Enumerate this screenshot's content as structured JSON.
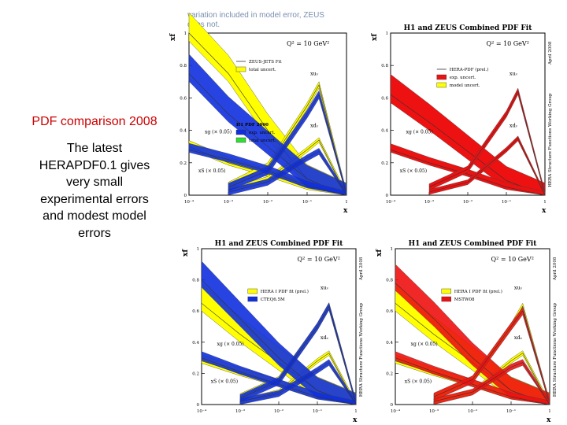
{
  "caption": {
    "line1": "variation included in model error, ZEUS",
    "line2": "does not."
  },
  "side": {
    "title": "PDF comparison 2008",
    "text": [
      "The latest",
      "HERAPDF0.1 gives",
      "very small",
      "experimental errors",
      "and modest model",
      "errors"
    ]
  },
  "colors": {
    "yellow": "#ffff00",
    "blue": "#1030e0",
    "green": "#33dd33",
    "red": "#ee1111",
    "title_red": "#cc0000"
  },
  "chart_data": [
    {
      "type": "line",
      "title": "",
      "scale_label": "Q² = 10 GeV²",
      "xlabel": "x",
      "ylabel": "xf",
      "xscale": "log",
      "xlim": [
        0.0001,
        1
      ],
      "ylim": [
        0,
        1
      ],
      "xticks": [
        "10⁻⁴",
        "10⁻³",
        "10⁻²",
        "10⁻¹",
        "1"
      ],
      "yticks": [
        "0",
        "0.2",
        "0.4",
        "0.6",
        "0.8",
        "1"
      ],
      "legend": [
        "ZEUS-JETS Fit",
        "total uncert.",
        "H1 PDF 2000",
        "exp. uncert.",
        "total uncert."
      ],
      "labels": {
        "uv": "xuᵥ",
        "dv": "xdᵥ",
        "g": "xg (× 0.05)",
        "s": "xS (× 0.05)"
      },
      "side_note": "",
      "series": [
        {
          "name": "ZEUS-JETS Fit",
          "band": "yellow",
          "curves": {
            "g": [
              [
                0.0001,
                1.0
              ],
              [
                0.001,
                0.75
              ],
              [
                0.01,
                0.4
              ],
              [
                0.1,
                0.1
              ],
              [
                1,
                0
              ]
            ],
            "s": [
              [
                0.0001,
                0.3
              ],
              [
                0.001,
                0.2
              ],
              [
                0.01,
                0.13
              ],
              [
                0.1,
                0.05
              ],
              [
                1,
                0
              ]
            ],
            "uv": [
              [
                0.001,
                0.06
              ],
              [
                0.01,
                0.18
              ],
              [
                0.1,
                0.55
              ],
              [
                0.2,
                0.68
              ],
              [
                1,
                0
              ]
            ],
            "dv": [
              [
                0.001,
                0.03
              ],
              [
                0.01,
                0.1
              ],
              [
                0.1,
                0.28
              ],
              [
                0.2,
                0.34
              ],
              [
                1,
                0
              ]
            ]
          }
        },
        {
          "name": "H1 PDF 2000",
          "band": "blue",
          "curves": {
            "g": [
              [
                0.0001,
                0.75
              ],
              [
                0.001,
                0.5
              ],
              [
                0.01,
                0.3
              ],
              [
                0.1,
                0.1
              ],
              [
                1,
                0
              ]
            ],
            "s": [
              [
                0.0001,
                0.28
              ],
              [
                0.001,
                0.22
              ],
              [
                0.01,
                0.15
              ],
              [
                0.1,
                0.06
              ],
              [
                1,
                0
              ]
            ],
            "uv": [
              [
                0.001,
                0.05
              ],
              [
                0.01,
                0.15
              ],
              [
                0.1,
                0.5
              ],
              [
                0.2,
                0.62
              ],
              [
                1,
                0
              ]
            ],
            "dv": [
              [
                0.001,
                0.02
              ],
              [
                0.01,
                0.08
              ],
              [
                0.1,
                0.23
              ],
              [
                0.2,
                0.27
              ],
              [
                1,
                0
              ]
            ]
          }
        }
      ]
    },
    {
      "type": "line",
      "title": "H1 and ZEUS Combined PDF Fit",
      "scale_label": "Q² = 10 GeV²",
      "xlabel": "x",
      "ylabel": "xf",
      "xscale": "log",
      "xlim": [
        0.0001,
        1
      ],
      "ylim": [
        0,
        1
      ],
      "xticks": [
        "10⁻⁴",
        "10⁻³",
        "10⁻²",
        "10⁻¹",
        "1"
      ],
      "yticks": [
        "0",
        "0.2",
        "0.4",
        "0.6",
        "0.8",
        "1"
      ],
      "legend": [
        "HERA-PDF (prel.)",
        "exp. uncert.",
        "model uncert."
      ],
      "labels": {
        "uv": "xuᵥ",
        "dv": "xdᵥ",
        "g": "xg (× 0.05)",
        "s": "xS (× 0.05)"
      },
      "side_note": "HERA Structure Functions Working Group",
      "date_note": "April 2008",
      "series": [
        {
          "name": "HERA-PDF (prel.)",
          "band": "red",
          "curves": {
            "g": [
              [
                0.0001,
                0.62
              ],
              [
                0.001,
                0.45
              ],
              [
                0.01,
                0.27
              ],
              [
                0.1,
                0.09
              ],
              [
                1,
                0
              ]
            ],
            "s": [
              [
                0.0001,
                0.28
              ],
              [
                0.001,
                0.2
              ],
              [
                0.01,
                0.13
              ],
              [
                0.1,
                0.05
              ],
              [
                1,
                0
              ]
            ],
            "uv": [
              [
                0.001,
                0.05
              ],
              [
                0.01,
                0.16
              ],
              [
                0.1,
                0.5
              ],
              [
                0.2,
                0.64
              ],
              [
                1,
                0
              ]
            ],
            "dv": [
              [
                0.001,
                0.02
              ],
              [
                0.01,
                0.08
              ],
              [
                0.1,
                0.28
              ],
              [
                0.2,
                0.35
              ],
              [
                1,
                0
              ]
            ]
          }
        }
      ]
    },
    {
      "type": "line",
      "title": "H1 and ZEUS Combined PDF Fit",
      "scale_label": "Q² = 10 GeV²",
      "xlabel": "x",
      "ylabel": "xf",
      "xscale": "log",
      "xlim": [
        0.0001,
        1
      ],
      "ylim": [
        0,
        1
      ],
      "xticks": [
        "10⁻⁴",
        "10⁻³",
        "10⁻²",
        "10⁻¹",
        "1"
      ],
      "yticks": [
        "0",
        "0.2",
        "0.4",
        "0.6",
        "0.8",
        "1"
      ],
      "legend": [
        "HERA I PDF fit (prel.)",
        "CTEQ6.5M"
      ],
      "labels": {
        "uv": "xuᵥ",
        "dv": "xdᵥ",
        "g": "xg (× 0.05)",
        "s": "xS (× 0.05)"
      },
      "side_note": "HERA Structure Functions Working Group",
      "date_note": "April 2008",
      "series": [
        {
          "name": "HERA I PDF fit (prel.)",
          "band": "yellow",
          "curves": {
            "g": [
              [
                0.0001,
                0.65
              ],
              [
                0.001,
                0.45
              ],
              [
                0.01,
                0.27
              ],
              [
                0.1,
                0.09
              ],
              [
                1,
                0
              ]
            ],
            "s": [
              [
                0.0001,
                0.28
              ],
              [
                0.001,
                0.2
              ],
              [
                0.01,
                0.13
              ],
              [
                0.1,
                0.05
              ],
              [
                1,
                0
              ]
            ],
            "uv": [
              [
                0.001,
                0.05
              ],
              [
                0.01,
                0.16
              ],
              [
                0.1,
                0.5
              ],
              [
                0.2,
                0.63
              ],
              [
                1,
                0
              ]
            ],
            "dv": [
              [
                0.001,
                0.02
              ],
              [
                0.01,
                0.08
              ],
              [
                0.1,
                0.28
              ],
              [
                0.2,
                0.33
              ],
              [
                1,
                0
              ]
            ]
          }
        },
        {
          "name": "CTEQ6.5M",
          "band": "blue",
          "curves": {
            "g": [
              [
                0.0001,
                0.8
              ],
              [
                0.001,
                0.55
              ],
              [
                0.01,
                0.3
              ],
              [
                0.1,
                0.09
              ],
              [
                1,
                0
              ]
            ],
            "s": [
              [
                0.0001,
                0.3
              ],
              [
                0.001,
                0.21
              ],
              [
                0.01,
                0.13
              ],
              [
                0.1,
                0.05
              ],
              [
                1,
                0
              ]
            ],
            "uv": [
              [
                0.001,
                0.04
              ],
              [
                0.01,
                0.15
              ],
              [
                0.1,
                0.5
              ],
              [
                0.2,
                0.63
              ],
              [
                1,
                0
              ]
            ],
            "dv": [
              [
                0.001,
                0.02
              ],
              [
                0.01,
                0.07
              ],
              [
                0.1,
                0.22
              ],
              [
                0.2,
                0.27
              ],
              [
                1,
                0
              ]
            ]
          }
        }
      ]
    },
    {
      "type": "line",
      "title": "H1 and ZEUS Combined PDF Fit",
      "scale_label": "Q² = 10 GeV²",
      "xlabel": "x",
      "ylabel": "xf",
      "xscale": "log",
      "xlim": [
        0.0001,
        1
      ],
      "ylim": [
        0,
        1
      ],
      "xticks": [
        "10⁻⁴",
        "10⁻³",
        "10⁻²",
        "10⁻¹",
        "1"
      ],
      "yticks": [
        "0",
        "0.2",
        "0.4",
        "0.6",
        "0.8",
        "1"
      ],
      "legend": [
        "HERA I PDF fit (prel.)",
        "MSTW08"
      ],
      "labels": {
        "uv": "xuᵥ",
        "dv": "xdᵥ",
        "g": "xg (× 0.05)",
        "s": "xS (× 0.05)"
      },
      "side_note": "HERA Structure Functions Working Group",
      "date_note": "April 2008",
      "series": [
        {
          "name": "HERA I PDF fit (prel.)",
          "band": "yellow",
          "curves": {
            "g": [
              [
                0.0001,
                0.65
              ],
              [
                0.001,
                0.45
              ],
              [
                0.01,
                0.27
              ],
              [
                0.1,
                0.09
              ],
              [
                1,
                0
              ]
            ],
            "s": [
              [
                0.0001,
                0.28
              ],
              [
                0.001,
                0.2
              ],
              [
                0.01,
                0.13
              ],
              [
                0.1,
                0.05
              ],
              [
                1,
                0
              ]
            ],
            "uv": [
              [
                0.001,
                0.05
              ],
              [
                0.01,
                0.16
              ],
              [
                0.1,
                0.5
              ],
              [
                0.2,
                0.63
              ],
              [
                1,
                0
              ]
            ],
            "dv": [
              [
                0.001,
                0.02
              ],
              [
                0.01,
                0.08
              ],
              [
                0.1,
                0.28
              ],
              [
                0.2,
                0.33
              ],
              [
                1,
                0
              ]
            ]
          }
        },
        {
          "name": "MSTW08",
          "band": "red",
          "curves": {
            "g": [
              [
                0.0001,
                0.78
              ],
              [
                0.001,
                0.55
              ],
              [
                0.01,
                0.3
              ],
              [
                0.1,
                0.09
              ],
              [
                1,
                0
              ]
            ],
            "s": [
              [
                0.0001,
                0.3
              ],
              [
                0.001,
                0.21
              ],
              [
                0.01,
                0.13
              ],
              [
                0.1,
                0.05
              ],
              [
                1,
                0
              ]
            ],
            "uv": [
              [
                0.001,
                0.05
              ],
              [
                0.01,
                0.16
              ],
              [
                0.1,
                0.5
              ],
              [
                0.2,
                0.6
              ],
              [
                1,
                0
              ]
            ],
            "dv": [
              [
                0.001,
                0.02
              ],
              [
                0.01,
                0.08
              ],
              [
                0.1,
                0.24
              ],
              [
                0.2,
                0.27
              ],
              [
                1,
                0
              ]
            ]
          }
        }
      ]
    }
  ]
}
